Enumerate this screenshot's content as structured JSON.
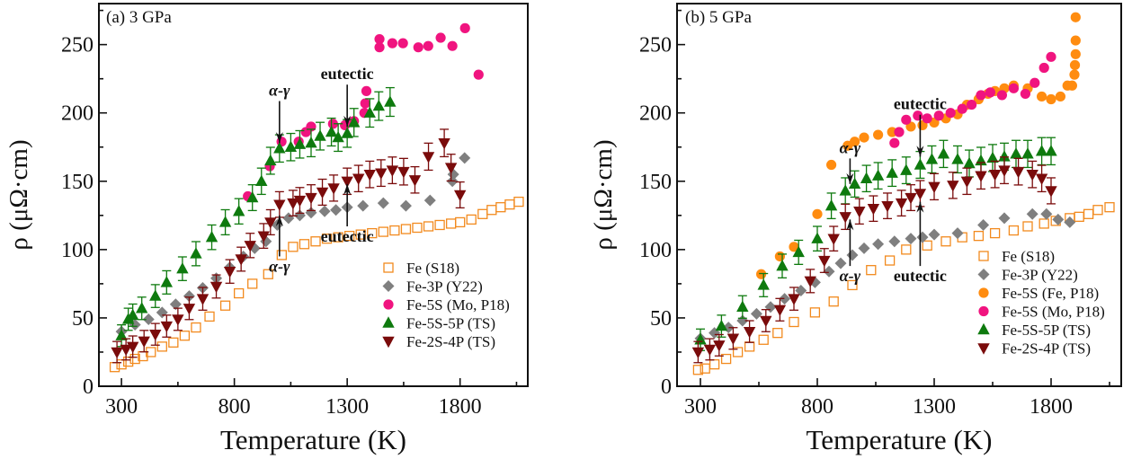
{
  "chart_data": [
    {
      "type": "scatter",
      "title": "(a) 3 GPa",
      "xlabel": "Temperature (K)",
      "ylabel": "ρ (μΩ·cm)",
      "xlim": [
        200,
        2100
      ],
      "ylim": [
        0,
        280
      ],
      "xticks": [
        300,
        800,
        1300,
        1800
      ],
      "xtick_labels": [
        "300",
        "800",
        "1300",
        "1800"
      ],
      "yticks": [
        0,
        50,
        100,
        150,
        200,
        250
      ],
      "ytick_labels": [
        "0",
        "50",
        "100",
        "150",
        "200",
        "250"
      ],
      "grid": false,
      "legend_position": "bottom-right",
      "series": [
        {
          "name": "Fe (S18)",
          "marker": "square-open",
          "color": "#f28a1e",
          "errorbars": false,
          "x": [
            270,
            300,
            330,
            360,
            395,
            430,
            480,
            530,
            580,
            630,
            690,
            760,
            820,
            880,
            950,
            1010,
            1060,
            1110,
            1160,
            1210,
            1260,
            1310,
            1360,
            1410,
            1460,
            1510,
            1560,
            1610,
            1660,
            1710,
            1760,
            1800,
            1850,
            1900,
            1940,
            1980,
            2020,
            2060
          ],
          "y": [
            14,
            16,
            18,
            20,
            22,
            25,
            29,
            32,
            37,
            43,
            51,
            59,
            68,
            75,
            82,
            96,
            102,
            104,
            106,
            108,
            109,
            110,
            111,
            112,
            113,
            114,
            115,
            116,
            117,
            118,
            119,
            120,
            122,
            126,
            129,
            131,
            133,
            135
          ]
        },
        {
          "name": "Fe-3P (Y22)",
          "marker": "diamond",
          "color": "#7f7f7f",
          "errorbars": false,
          "x": [
            300,
            360,
            420,
            480,
            540,
            600,
            660,
            720,
            780,
            840,
            890,
            940,
            990,
            1040,
            1090,
            1140,
            1200,
            1250,
            1300,
            1370,
            1460,
            1560,
            1667,
            1766,
            1770,
            1820
          ],
          "y": [
            40,
            45,
            49,
            54,
            60,
            66,
            72,
            79,
            87,
            95,
            101,
            106,
            118,
            123,
            125,
            127,
            128,
            129,
            131,
            132,
            134,
            132,
            136,
            150,
            155,
            167
          ]
        },
        {
          "name": "Fe-5S (Mo, P18)",
          "marker": "circle",
          "color": "#f0147f",
          "errorbars": false,
          "x": [
            860,
            957,
            1009,
            1085,
            1117,
            1140,
            1237,
            1290,
            1330,
            1376,
            1380,
            1385,
            1443,
            1443,
            1500,
            1547,
            1615,
            1659,
            1714,
            1766,
            1822,
            1882
          ],
          "y": [
            139,
            161,
            179,
            179,
            186,
            190,
            192,
            191,
            194,
            200,
            207,
            216,
            254,
            248,
            251,
            251,
            248,
            249,
            255,
            249,
            262,
            228
          ]
        },
        {
          "name": "Fe-5S-5P (TS)",
          "marker": "triangle-up",
          "color": "#0e7a0e",
          "errorbars": true,
          "x": [
            300,
            330,
            350,
            390,
            450,
            500,
            570,
            630,
            700,
            760,
            820,
            880,
            920,
            960,
            1000,
            1050,
            1090,
            1140,
            1180,
            1230,
            1260,
            1300,
            1330,
            1400,
            1440,
            1490
          ],
          "y": [
            37,
            49,
            52,
            57,
            66,
            76,
            86,
            97,
            109,
            120,
            128,
            138,
            150,
            165,
            174,
            175,
            177,
            178,
            183,
            186,
            182,
            185,
            193,
            200,
            205,
            208
          ]
        },
        {
          "name": "Fe-2S-4P (TS)",
          "marker": "triangle-down",
          "color": "#7a0b0b",
          "errorbars": true,
          "x": [
            280,
            320,
            350,
            400,
            450,
            500,
            550,
            600,
            660,
            720,
            780,
            830,
            870,
            930,
            960,
            1000,
            1060,
            1090,
            1140,
            1190,
            1240,
            1300,
            1350,
            1400,
            1450,
            1500,
            1550,
            1600,
            1660,
            1730,
            1760,
            1800
          ],
          "y": [
            25,
            27,
            29,
            33,
            38,
            44,
            49,
            57,
            64,
            73,
            84,
            93,
            103,
            110,
            120,
            133,
            134,
            136,
            138,
            142,
            145,
            150,
            152,
            155,
            156,
            158,
            157,
            151,
            168,
            178,
            160,
            140
          ]
        }
      ],
      "annotations": [
        {
          "text": "α-γ",
          "x": 1000,
          "y": 210,
          "arrow_to": [
            1000,
            178
          ],
          "direction": "down"
        },
        {
          "text": "eutectic",
          "x": 1300,
          "y": 222,
          "arrow_to": [
            1300,
            190
          ],
          "direction": "down"
        },
        {
          "text": "eutectic",
          "x": 1300,
          "y": 117,
          "arrow_to": [
            1300,
            148
          ],
          "direction": "up"
        },
        {
          "text": "α-γ",
          "x": 1000,
          "y": 95,
          "arrow_to": [
            1000,
            125
          ],
          "direction": "up"
        }
      ]
    },
    {
      "type": "scatter",
      "title": "(b) 5 GPa",
      "xlabel": "Temperature (K)",
      "ylabel": "ρ (μΩ·cm)",
      "xlim": [
        200,
        2100
      ],
      "ylim": [
        0,
        280
      ],
      "xticks": [
        300,
        800,
        1300,
        1800
      ],
      "xtick_labels": [
        "300",
        "800",
        "1300",
        "1800"
      ],
      "yticks": [
        0,
        50,
        100,
        150,
        200,
        250
      ],
      "ytick_labels": [
        "0",
        "50",
        "100",
        "150",
        "200",
        "250"
      ],
      "grid": false,
      "legend_position": "bottom-right",
      "series": [
        {
          "name": "Fe (S18)",
          "marker": "square-open",
          "color": "#f28a1e",
          "errorbars": false,
          "x": [
            290,
            320,
            360,
            410,
            460,
            510,
            570,
            630,
            700,
            790,
            870,
            950,
            1030,
            1110,
            1180,
            1270,
            1350,
            1420,
            1490,
            1560,
            1640,
            1700,
            1770,
            1820,
            1880,
            1920,
            1960,
            2000,
            2050
          ],
          "y": [
            12,
            13,
            16,
            20,
            25,
            29,
            34,
            39,
            47,
            54,
            62,
            74,
            85,
            92,
            100,
            103,
            106,
            109,
            110,
            112,
            114,
            117,
            119,
            121,
            123,
            124,
            126,
            129,
            131
          ]
        },
        {
          "name": "Fe-3P (Y22)",
          "marker": "diamond",
          "color": "#7f7f7f",
          "errorbars": false,
          "x": [
            300,
            360,
            420,
            480,
            540,
            600,
            660,
            730,
            790,
            850,
            900,
            950,
            1000,
            1060,
            1130,
            1200,
            1250,
            1300,
            1400,
            1510,
            1600,
            1720,
            1780,
            1830,
            1880
          ],
          "y": [
            35,
            39,
            43,
            48,
            53,
            58,
            64,
            70,
            76,
            84,
            90,
            96,
            101,
            104,
            106,
            108,
            109,
            111,
            112,
            118,
            123,
            126,
            126,
            122,
            120
          ]
        },
        {
          "name": "Fe-5S (Fe, P18)",
          "marker": "circle",
          "color": "#ff8c10",
          "errorbars": false,
          "x": [
            560,
            640,
            700,
            800,
            860,
            930,
            960,
            1000,
            1060,
            1120,
            1200,
            1250,
            1300,
            1350,
            1400,
            1440,
            1490,
            1530,
            1560,
            1600,
            1640,
            1700,
            1760,
            1800,
            1840,
            1870,
            1890,
            1900,
            1902,
            1905,
            1905,
            1905
          ],
          "y": [
            82,
            95,
            102,
            126,
            162,
            176,
            179,
            182,
            184,
            186,
            190,
            191,
            193,
            196,
            199,
            206,
            210,
            214,
            216,
            218,
            220,
            218,
            212,
            210,
            212,
            220,
            220,
            228,
            235,
            243,
            253,
            270
          ]
        },
        {
          "name": "Fe-5S (Mo, P18)",
          "marker": "circle",
          "color": "#f0147f",
          "errorbars": false,
          "x": [
            1130,
            1150,
            1180,
            1230,
            1270,
            1320,
            1370,
            1420,
            1460,
            1500,
            1540,
            1590,
            1640,
            1690,
            1730,
            1770,
            1800
          ],
          "y": [
            178,
            186,
            195,
            198,
            196,
            198,
            200,
            203,
            206,
            213,
            215,
            213,
            218,
            214,
            222,
            233,
            241
          ]
        },
        {
          "name": "Fe-5S-5P (TS)",
          "marker": "triangle-up",
          "color": "#0e7a0e",
          "errorbars": true,
          "x": [
            300,
            390,
            480,
            570,
            650,
            720,
            800,
            860,
            920,
            960,
            1010,
            1060,
            1120,
            1180,
            1240,
            1290,
            1340,
            1400,
            1450,
            1500,
            1550,
            1600,
            1650,
            1700,
            1760,
            1800
          ],
          "y": [
            34,
            44,
            58,
            74,
            88,
            98,
            108,
            132,
            143,
            148,
            152,
            154,
            156,
            158,
            162,
            166,
            170,
            166,
            163,
            165,
            167,
            168,
            170,
            170,
            172,
            172
          ]
        },
        {
          "name": "Fe-2S-4P (TS)",
          "marker": "triangle-down",
          "color": "#7a0b0b",
          "errorbars": true,
          "x": [
            290,
            340,
            380,
            440,
            510,
            580,
            640,
            700,
            770,
            830,
            870,
            920,
            980,
            1040,
            1100,
            1160,
            1200,
            1240,
            1300,
            1380,
            1440,
            1500,
            1560,
            1600,
            1660,
            1720,
            1760,
            1800
          ],
          "y": [
            25,
            27,
            30,
            35,
            40,
            48,
            56,
            64,
            77,
            92,
            108,
            124,
            128,
            130,
            132,
            134,
            138,
            141,
            146,
            147,
            150,
            154,
            155,
            158,
            157,
            155,
            152,
            143
          ]
        }
      ],
      "annotations": [
        {
          "text": "eutectic",
          "x": 1240,
          "y": 200,
          "arrow_to": [
            1240,
            168
          ],
          "direction": "down"
        },
        {
          "text": "α-γ",
          "x": 940,
          "y": 168,
          "arrow_to": [
            940,
            148
          ],
          "direction": "down"
        },
        {
          "text": "α-γ",
          "x": 940,
          "y": 88,
          "arrow_to": [
            940,
            122
          ],
          "direction": "up"
        },
        {
          "text": "eutectic",
          "x": 1240,
          "y": 88,
          "arrow_to": [
            1240,
            135
          ],
          "direction": "up"
        }
      ]
    }
  ]
}
